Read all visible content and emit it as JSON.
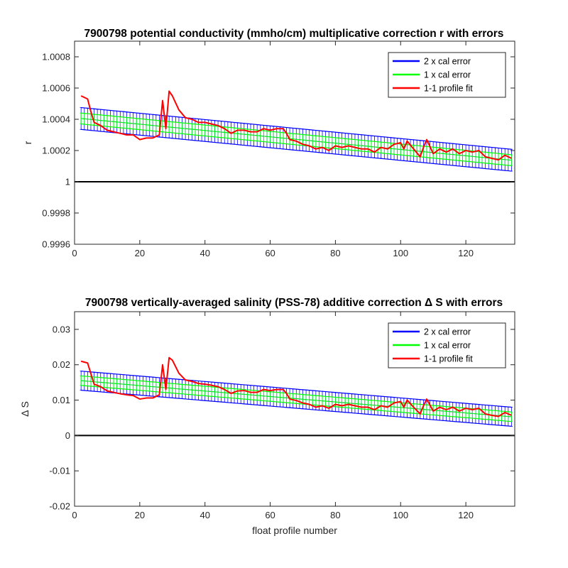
{
  "chart_data": [
    {
      "type": "line",
      "title": "7900798 potential conductivity (mmho/cm) multiplicative correction r with errors",
      "xlabel": "",
      "ylabel": "r",
      "xlim": [
        0,
        135
      ],
      "ylim": [
        0.9996,
        1.0009
      ],
      "xticks": [
        0,
        20,
        40,
        60,
        80,
        100,
        120
      ],
      "xtick_labels": [
        "0",
        "20",
        "40",
        "60",
        "80",
        "100",
        "120"
      ],
      "yticks": [
        0.9996,
        0.9998,
        1,
        1.0002,
        1.0004,
        1.0006,
        1.0008
      ],
      "ytick_labels": [
        "0.9996",
        "0.9998",
        "1",
        "1.0002",
        "1.0004",
        "1.0006",
        "1.0008"
      ],
      "reference_line": 1,
      "legend_position": "top-right",
      "legend": [
        "2 x cal error",
        "1 x cal error",
        "1-1 profile fit"
      ],
      "colors": {
        "cal2": "#0000ff",
        "cal1": "#00ff00",
        "fit": "#ff0000",
        "reference": "#000000"
      },
      "series": [
        {
          "name": "2 x cal error",
          "kind": "errorbar",
          "x": [
            2,
            134
          ],
          "center": [
            1.000405,
            1.000138
          ],
          "half_width": [
            7e-05,
            7e-05
          ]
        },
        {
          "name": "1 x cal error",
          "kind": "errorbar",
          "x": [
            2,
            134
          ],
          "center": [
            1.000405,
            1.000138
          ],
          "half_width": [
            3.5e-05,
            3.5e-05
          ]
        },
        {
          "name": "1-1 profile fit",
          "kind": "line",
          "x": [
            2,
            4,
            5,
            6,
            8,
            10,
            12,
            14,
            16,
            18,
            20,
            22,
            24,
            26,
            27,
            28,
            29,
            30,
            32,
            34,
            36,
            38,
            40,
            42,
            44,
            46,
            48,
            50,
            52,
            54,
            56,
            58,
            60,
            62,
            64,
            65,
            66,
            68,
            70,
            72,
            74,
            76,
            78,
            80,
            82,
            84,
            86,
            88,
            90,
            92,
            94,
            96,
            98,
            100,
            101,
            102,
            104,
            106,
            107,
            108,
            110,
            112,
            114,
            116,
            118,
            120,
            122,
            124,
            126,
            128,
            130,
            132,
            134
          ],
          "y": [
            1.00055,
            1.00053,
            1.00045,
            1.00038,
            1.00036,
            1.00033,
            1.00032,
            1.00031,
            1.0003,
            1.0003,
            1.00027,
            1.00028,
            1.00028,
            1.0003,
            1.00052,
            1.00034,
            1.00058,
            1.00055,
            1.00046,
            1.00041,
            1.0004,
            1.00038,
            1.00038,
            1.00037,
            1.00036,
            1.00034,
            1.00031,
            1.00033,
            1.00033,
            1.00032,
            1.00032,
            1.00034,
            1.00033,
            1.00034,
            1.00034,
            1.00031,
            1.00027,
            1.00026,
            1.00024,
            1.00023,
            1.00021,
            1.00022,
            1.0002,
            1.00023,
            1.00022,
            1.00023,
            1.00022,
            1.00021,
            1.00021,
            1.00019,
            1.00022,
            1.00021,
            1.00024,
            1.00025,
            1.00021,
            1.00026,
            1.00021,
            1.00016,
            1.00022,
            1.00027,
            1.00018,
            1.00021,
            1.00019,
            1.00021,
            1.00018,
            1.0002,
            1.00019,
            1.0002,
            1.00016,
            1.00015,
            1.00014,
            1.00017,
            1.00015
          ]
        }
      ]
    },
    {
      "type": "line",
      "title": "7900798 vertically-averaged salinity (PSS-78) additive correction Δ S with errors",
      "xlabel": "float profile number",
      "ylabel": "Δ S",
      "xlim": [
        0,
        135
      ],
      "ylim": [
        -0.02,
        0.035
      ],
      "xticks": [
        0,
        20,
        40,
        60,
        80,
        100,
        120
      ],
      "xtick_labels": [
        "0",
        "20",
        "40",
        "60",
        "80",
        "100",
        "120"
      ],
      "yticks": [
        -0.02,
        -0.01,
        0,
        0.01,
        0.02,
        0.03
      ],
      "ytick_labels": [
        "-0.02",
        "-0.01",
        "0",
        "0.01",
        "0.02",
        "0.03"
      ],
      "reference_line": 0,
      "legend_position": "top-right",
      "legend": [
        "2 x cal error",
        "1 x cal error",
        "1-1 profile fit"
      ],
      "colors": {
        "cal2": "#0000ff",
        "cal1": "#00ff00",
        "fit": "#ff0000",
        "reference": "#000000"
      },
      "series": [
        {
          "name": "2 x cal error",
          "kind": "errorbar",
          "x": [
            2,
            134
          ],
          "center": [
            0.0155,
            0.0053
          ],
          "half_width": [
            0.0027,
            0.0027
          ]
        },
        {
          "name": "1 x cal error",
          "kind": "errorbar",
          "x": [
            2,
            134
          ],
          "center": [
            0.0155,
            0.0053
          ],
          "half_width": [
            0.00135,
            0.00135
          ]
        },
        {
          "name": "1-1 profile fit",
          "kind": "line",
          "x": [
            2,
            4,
            5,
            6,
            8,
            10,
            12,
            14,
            16,
            18,
            20,
            22,
            24,
            26,
            27,
            28,
            29,
            30,
            32,
            34,
            36,
            38,
            40,
            42,
            44,
            46,
            48,
            50,
            52,
            54,
            56,
            58,
            60,
            62,
            64,
            65,
            66,
            68,
            70,
            72,
            74,
            76,
            78,
            80,
            82,
            84,
            86,
            88,
            90,
            92,
            94,
            96,
            98,
            100,
            101,
            102,
            104,
            106,
            107,
            108,
            110,
            112,
            114,
            116,
            118,
            120,
            122,
            124,
            126,
            128,
            130,
            132,
            134
          ],
          "y": [
            0.021,
            0.0205,
            0.0175,
            0.0145,
            0.0138,
            0.0126,
            0.0122,
            0.0118,
            0.0115,
            0.0113,
            0.0103,
            0.0106,
            0.0106,
            0.0115,
            0.02,
            0.013,
            0.022,
            0.0213,
            0.0176,
            0.0157,
            0.0153,
            0.0147,
            0.0145,
            0.0142,
            0.0138,
            0.013,
            0.0119,
            0.0126,
            0.0127,
            0.0122,
            0.0122,
            0.013,
            0.0127,
            0.013,
            0.013,
            0.0119,
            0.0103,
            0.0099,
            0.0092,
            0.0088,
            0.008,
            0.0084,
            0.0077,
            0.0088,
            0.0084,
            0.0088,
            0.0084,
            0.008,
            0.008,
            0.0073,
            0.0084,
            0.008,
            0.0092,
            0.0096,
            0.008,
            0.01,
            0.008,
            0.0061,
            0.0084,
            0.0103,
            0.0069,
            0.008,
            0.0073,
            0.008,
            0.0069,
            0.0077,
            0.0073,
            0.0077,
            0.0061,
            0.0057,
            0.0054,
            0.0065,
            0.0057
          ]
        }
      ]
    }
  ]
}
